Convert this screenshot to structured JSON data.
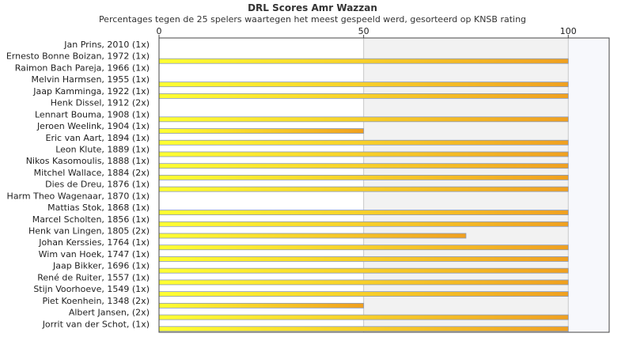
{
  "header": {
    "title": "DRL Scores Amr Wazzan",
    "subtitle": "Percentages tegen de 25 spelers waartegen het meest gespeeld werd, gesorteerd op KNSB rating"
  },
  "colors": {
    "bar_start": "#ffff33",
    "bar_end": "#f0a020",
    "bar_border": "#8899bb",
    "band": "#f2f2f2",
    "band_right": "#f7f8fc",
    "grid": "#c8c8c8",
    "frame": "#444444"
  },
  "chart_data": {
    "type": "bar",
    "orientation": "horizontal",
    "title": "DRL Scores Amr Wazzan",
    "subtitle": "Percentages tegen de 25 spelers waartegen het meest gespeeld werd, gesorteerd op KNSB rating",
    "xlim": [
      0,
      110
    ],
    "xticks": [
      0,
      50,
      100
    ],
    "xtick_labels": [
      "0",
      "50",
      "100"
    ],
    "legend": "none",
    "categories": [
      "Jan Prins, 2010 (1x)",
      "Ernesto Bonne Boizan, 1972 (1x)",
      "Raimon Bach Pareja, 1966 (1x)",
      "Melvin Harmsen, 1955 (1x)",
      "Jaap Kamminga, 1922 (1x)",
      "Henk Dissel, 1912 (2x)",
      "Lennart Bouma, 1908 (1x)",
      "Jeroen Weelink, 1904 (1x)",
      "Eric van Aart, 1894 (1x)",
      "Leon Klute, 1889 (1x)",
      "Nikos Kasomoulis, 1888 (1x)",
      "Mitchel Wallace, 1884 (2x)",
      "Dies de Dreu, 1876 (1x)",
      "Harm Theo Wagenaar, 1870 (1x)",
      "Mattias Stok, 1868 (1x)",
      "Marcel Scholten, 1856 (1x)",
      "Henk van Lingen, 1805 (2x)",
      "Johan Kerssies, 1764 (1x)",
      "Wim van Hoek, 1747 (1x)",
      "Jaap Bikker, 1696 (1x)",
      "René de Ruiter, 1557 (1x)",
      "Stijn Voorhoeve, 1549 (1x)",
      "Piet Koenhein, 1348 (2x)",
      "Albert Jansen,  (2x)",
      "Jorrit van der Schot,  (1x)"
    ],
    "values": [
      0,
      100,
      0,
      100,
      100,
      0,
      100,
      50,
      100,
      100,
      100,
      100,
      100,
      0,
      100,
      100,
      75,
      100,
      100,
      100,
      100,
      100,
      50,
      100,
      100
    ]
  }
}
